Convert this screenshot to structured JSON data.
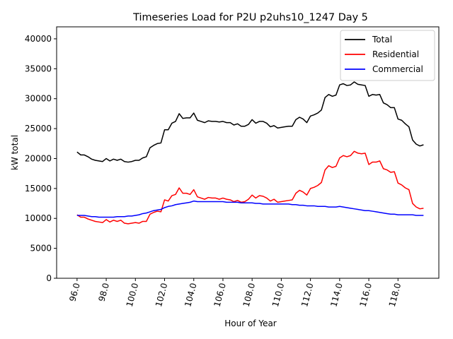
{
  "chart_data": {
    "type": "line",
    "title": "Timeseries Load for P2U p2uhs10_1247  Day 5",
    "xlabel": "Hour of Year",
    "ylabel": "kW total",
    "xlim": [
      94.6,
      120.8
    ],
    "ylim": [
      0,
      42000
    ],
    "xticks": [
      96,
      98,
      100,
      102,
      104,
      106,
      108,
      110,
      112,
      114,
      116,
      118
    ],
    "xtick_labels": [
      "96.0",
      "98.0",
      "100.0",
      "102.0",
      "104.0",
      "106.0",
      "108.0",
      "110.0",
      "112.0",
      "114.0",
      "116.0",
      "118.0"
    ],
    "yticks": [
      0,
      5000,
      10000,
      15000,
      20000,
      25000,
      30000,
      35000,
      40000
    ],
    "ytick_labels": [
      "0",
      "5000",
      "10000",
      "15000",
      "20000",
      "25000",
      "30000",
      "35000",
      "40000"
    ],
    "legend_position": "top-right",
    "x": [
      96,
      96.25,
      96.5,
      96.75,
      97,
      97.25,
      97.5,
      97.75,
      98,
      98.25,
      98.5,
      98.75,
      99,
      99.25,
      99.5,
      99.75,
      100,
      100.25,
      100.5,
      100.75,
      101,
      101.25,
      101.5,
      101.75,
      102,
      102.25,
      102.5,
      102.75,
      103,
      103.25,
      103.5,
      103.75,
      104,
      104.25,
      104.5,
      104.75,
      105,
      105.25,
      105.5,
      105.75,
      106,
      106.25,
      106.5,
      106.75,
      107,
      107.25,
      107.5,
      107.75,
      108,
      108.25,
      108.5,
      108.75,
      109,
      109.25,
      109.5,
      109.75,
      110,
      110.25,
      110.5,
      110.75,
      111,
      111.25,
      111.5,
      111.75,
      112,
      112.25,
      112.5,
      112.75,
      113,
      113.25,
      113.5,
      113.75,
      114,
      114.25,
      114.5,
      114.75,
      115,
      115.25,
      115.5,
      115.75,
      116,
      116.25,
      116.5,
      116.75,
      117,
      117.25,
      117.5,
      117.75,
      118,
      118.25,
      118.5,
      118.75,
      119,
      119.25,
      119.5,
      119.75
    ],
    "series": [
      {
        "name": "Total",
        "color": "#000000",
        "values": [
          21100,
          20600,
          20600,
          20300,
          19900,
          19700,
          19600,
          19500,
          20000,
          19600,
          19900,
          19700,
          19900,
          19500,
          19400,
          19500,
          19700,
          19700,
          20100,
          20300,
          21800,
          22200,
          22500,
          22600,
          24800,
          24800,
          25900,
          26200,
          27500,
          26700,
          26800,
          26800,
          27600,
          26400,
          26200,
          26000,
          26300,
          26200,
          26200,
          26100,
          26200,
          26000,
          26000,
          25600,
          25800,
          25400,
          25400,
          25700,
          26500,
          25900,
          26200,
          26200,
          25900,
          25300,
          25500,
          25100,
          25200,
          25300,
          25400,
          25400,
          26500,
          26900,
          26600,
          26000,
          27100,
          27300,
          27600,
          28100,
          30200,
          30700,
          30400,
          30600,
          32300,
          32500,
          32200,
          32300,
          32800,
          32400,
          32300,
          32200,
          30400,
          30700,
          30600,
          30700,
          29300,
          29000,
          28500,
          28500,
          26600,
          26400,
          25800,
          25300,
          23100,
          22400,
          22100,
          22300
        ]
      },
      {
        "name": "Residential",
        "color": "#ff0000",
        "values": [
          10600,
          10200,
          10200,
          9900,
          9700,
          9500,
          9400,
          9300,
          9800,
          9400,
          9700,
          9500,
          9700,
          9200,
          9100,
          9200,
          9300,
          9200,
          9500,
          9500,
          10700,
          11000,
          11200,
          11100,
          13100,
          12900,
          13800,
          14000,
          15100,
          14200,
          14200,
          14000,
          14800,
          13600,
          13400,
          13200,
          13500,
          13400,
          13400,
          13200,
          13400,
          13200,
          13100,
          12800,
          13000,
          12700,
          12800,
          13200,
          13900,
          13400,
          13800,
          13700,
          13400,
          12900,
          13200,
          12700,
          12800,
          12900,
          13000,
          13100,
          14200,
          14700,
          14400,
          13900,
          15000,
          15200,
          15500,
          16000,
          18100,
          18800,
          18500,
          18700,
          20100,
          20500,
          20300,
          20500,
          21200,
          20900,
          20800,
          20900,
          19000,
          19400,
          19400,
          19600,
          18300,
          18100,
          17700,
          17800,
          15900,
          15600,
          15100,
          14800,
          12500,
          11900,
          11600,
          11700
        ]
      },
      {
        "name": "Commercial",
        "color": "#0000ff",
        "values": [
          10500,
          10500,
          10500,
          10400,
          10300,
          10300,
          10200,
          10200,
          10200,
          10200,
          10200,
          10300,
          10300,
          10300,
          10400,
          10400,
          10500,
          10600,
          10800,
          10900,
          11100,
          11300,
          11400,
          11500,
          11800,
          12000,
          12100,
          12300,
          12400,
          12500,
          12600,
          12700,
          12900,
          12800,
          12800,
          12800,
          12800,
          12800,
          12800,
          12800,
          12800,
          12700,
          12700,
          12700,
          12700,
          12600,
          12600,
          12600,
          12600,
          12500,
          12500,
          12400,
          12400,
          12400,
          12400,
          12400,
          12400,
          12400,
          12400,
          12300,
          12300,
          12200,
          12200,
          12100,
          12100,
          12100,
          12000,
          12000,
          12000,
          11900,
          11900,
          11900,
          12000,
          11900,
          11800,
          11700,
          11600,
          11500,
          11400,
          11300,
          11300,
          11200,
          11100,
          11000,
          10900,
          10800,
          10700,
          10700,
          10600,
          10600,
          10600,
          10600,
          10600,
          10500,
          10500,
          10500
        ]
      }
    ]
  }
}
